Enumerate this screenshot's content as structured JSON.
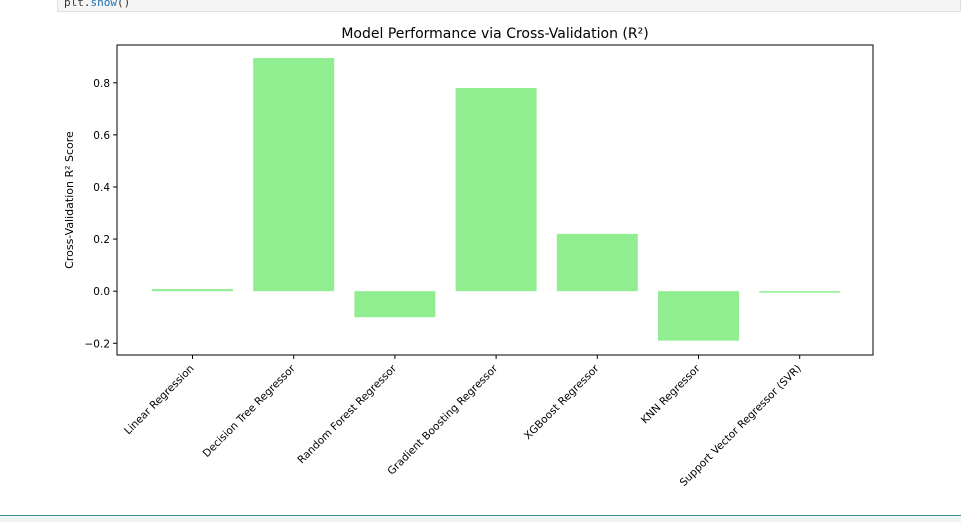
{
  "code_line": {
    "object": "plt",
    "method": "show",
    "parens": "()"
  },
  "chart_data": {
    "type": "bar",
    "title": "Model Performance via Cross-Validation (R²)",
    "xlabel": "",
    "ylabel": "Cross-Validation R² Score",
    "categories": [
      "Linear Regression",
      "Decision Tree Regressor",
      "Random Forest Regressor",
      "Gradient Boosting Regressor",
      "XGBoost Regressor",
      "KNN Regressor",
      "Support Vector Regressor (SVR)"
    ],
    "values": [
      0.008,
      0.895,
      -0.1,
      0.78,
      0.22,
      -0.19,
      -0.005
    ],
    "ylim": [
      -0.245,
      0.945
    ],
    "yticks": [
      -0.2,
      0.0,
      0.2,
      0.4,
      0.6,
      0.8
    ],
    "ytick_labels": [
      "−0.2",
      "0.0",
      "0.2",
      "0.4",
      "0.6",
      "0.8"
    ],
    "bar_color": "#90ee90",
    "grid": false
  }
}
